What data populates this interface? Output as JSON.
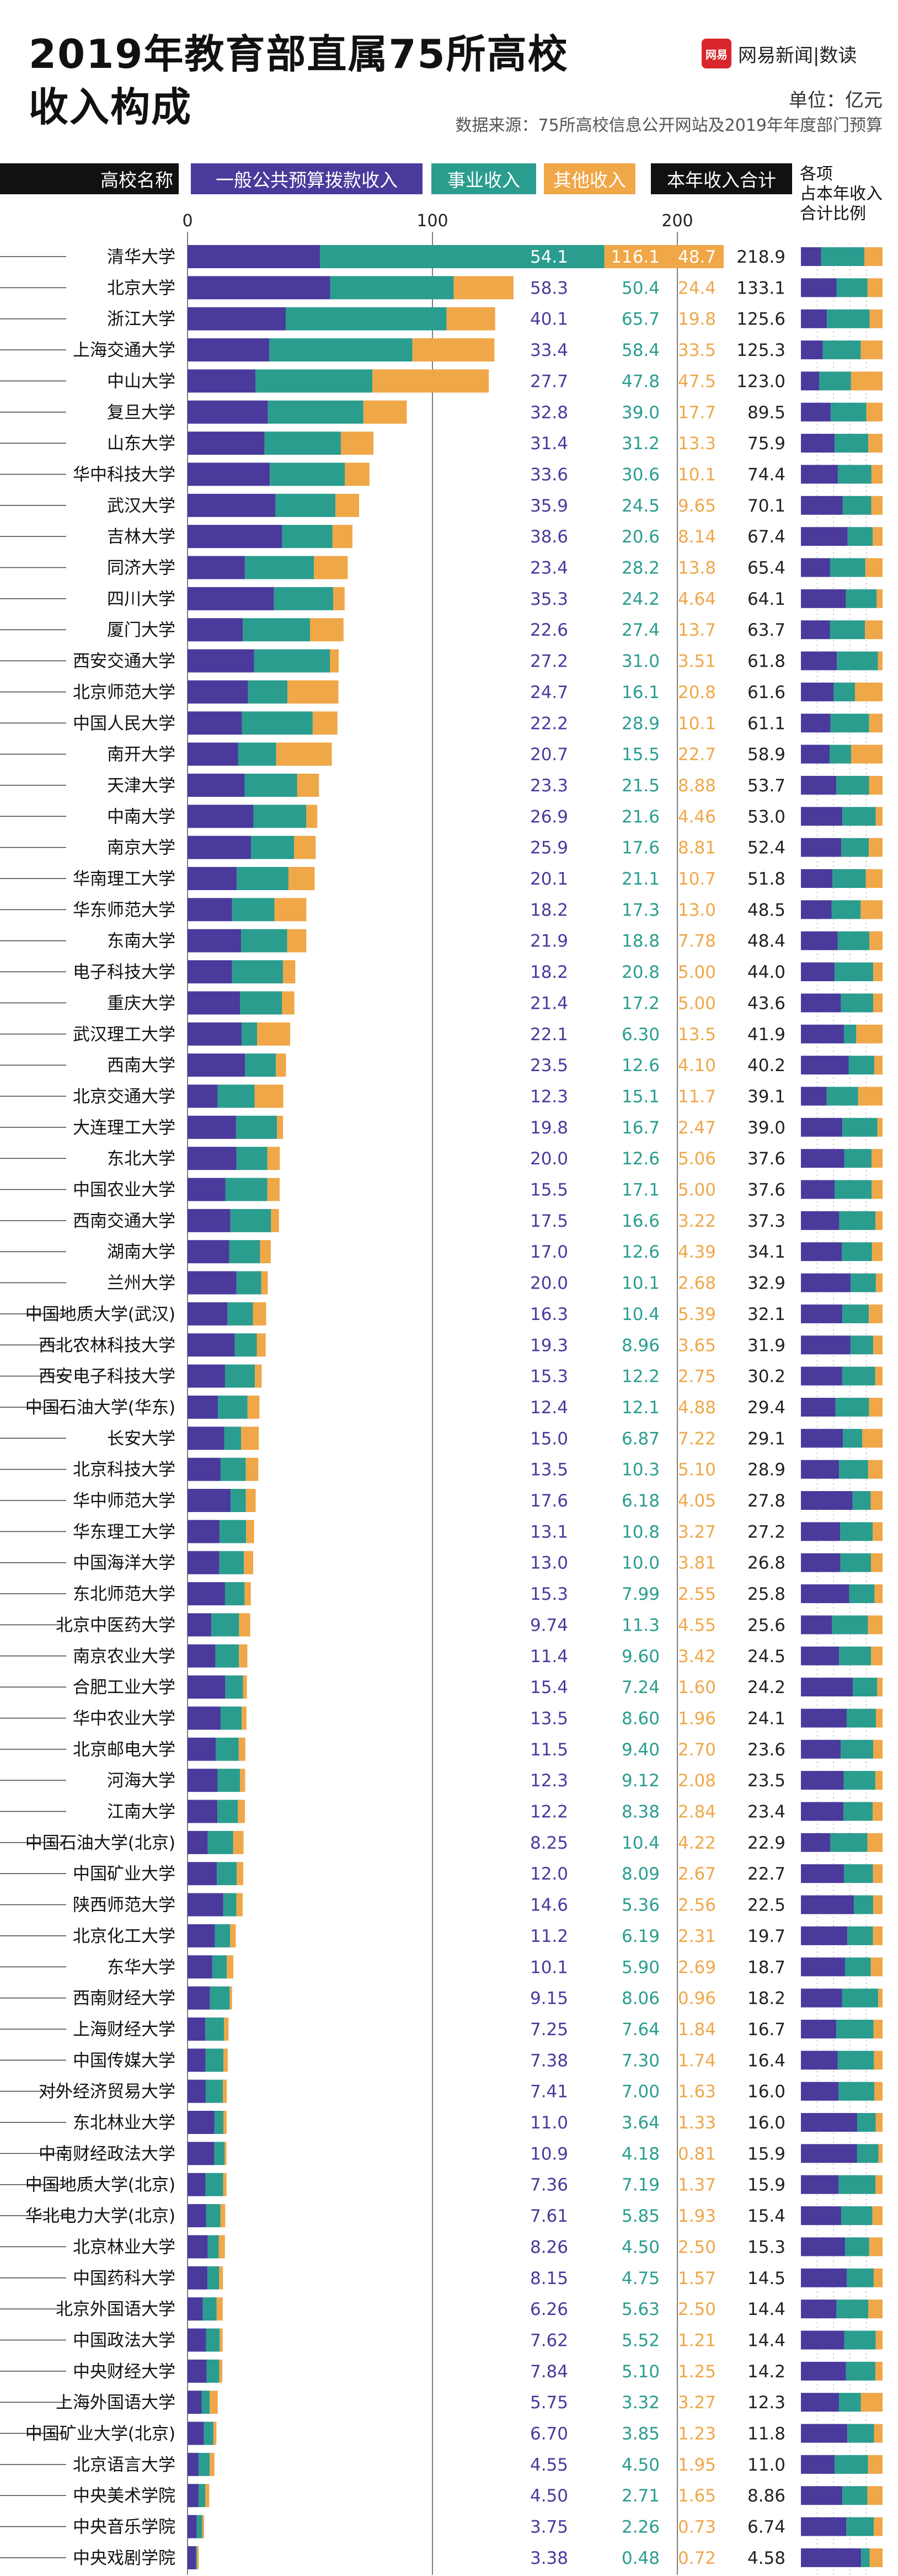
{
  "title_line1": "2019年教育部直属75所高校",
  "title_line2": "收入构成",
  "brand": {
    "badge": "网易",
    "text": "网易新闻|数读"
  },
  "unit": "单位：亿元",
  "source": "数据来源：75所高校信息公开网站及2019年年度部门预算",
  "headers": {
    "school": "高校名称",
    "public_budget": "一般公共预算拨款收入",
    "business": "事业收入",
    "other": "其他收入",
    "total": "本年收入合计",
    "ratio_line1": "各项",
    "ratio_line2": "占本年收入",
    "ratio_line3": "合计比例"
  },
  "colors": {
    "public_budget": "#4a3a9c",
    "business": "#2a9d8f",
    "other": "#f0a748"
  },
  "chart_data": {
    "type": "bar",
    "orientation": "horizontal",
    "stacked": true,
    "xlim": [
      0,
      220
    ],
    "x_ticks": [
      "0",
      "100",
      "200"
    ],
    "series": [
      {
        "name": "一般公共预算拨款收入",
        "color": "#4a3a9c"
      },
      {
        "name": "事业收入",
        "color": "#2a9d8f"
      },
      {
        "name": "其他收入",
        "color": "#f0a748"
      }
    ],
    "rows": [
      [
        "清华大学",
        "54.1",
        "116.1",
        "48.7",
        "218.9"
      ],
      [
        "北京大学",
        "58.3",
        "50.4",
        "24.4",
        "133.1"
      ],
      [
        "浙江大学",
        "40.1",
        "65.7",
        "19.8",
        "125.6"
      ],
      [
        "上海交通大学",
        "33.4",
        "58.4",
        "33.5",
        "125.3"
      ],
      [
        "中山大学",
        "27.7",
        "47.8",
        "47.5",
        "123.0"
      ],
      [
        "复旦大学",
        "32.8",
        "39.0",
        "17.7",
        "89.5"
      ],
      [
        "山东大学",
        "31.4",
        "31.2",
        "13.3",
        "75.9"
      ],
      [
        "华中科技大学",
        "33.6",
        "30.6",
        "10.1",
        "74.4"
      ],
      [
        "武汉大学",
        "35.9",
        "24.5",
        "9.65",
        "70.1"
      ],
      [
        "吉林大学",
        "38.6",
        "20.6",
        "8.14",
        "67.4"
      ],
      [
        "同济大学",
        "23.4",
        "28.2",
        "13.8",
        "65.4"
      ],
      [
        "四川大学",
        "35.3",
        "24.2",
        "4.64",
        "64.1"
      ],
      [
        "厦门大学",
        "22.6",
        "27.4",
        "13.7",
        "63.7"
      ],
      [
        "西安交通大学",
        "27.2",
        "31.0",
        "3.51",
        "61.8"
      ],
      [
        "北京师范大学",
        "24.7",
        "16.1",
        "20.8",
        "61.6"
      ],
      [
        "中国人民大学",
        "22.2",
        "28.9",
        "10.1",
        "61.1"
      ],
      [
        "南开大学",
        "20.7",
        "15.5",
        "22.7",
        "58.9"
      ],
      [
        "天津大学",
        "23.3",
        "21.5",
        "8.88",
        "53.7"
      ],
      [
        "中南大学",
        "26.9",
        "21.6",
        "4.46",
        "53.0"
      ],
      [
        "南京大学",
        "25.9",
        "17.6",
        "8.81",
        "52.4"
      ],
      [
        "华南理工大学",
        "20.1",
        "21.1",
        "10.7",
        "51.8"
      ],
      [
        "华东师范大学",
        "18.2",
        "17.3",
        "13.0",
        "48.5"
      ],
      [
        "东南大学",
        "21.9",
        "18.8",
        "7.78",
        "48.4"
      ],
      [
        "电子科技大学",
        "18.2",
        "20.8",
        "5.00",
        "44.0"
      ],
      [
        "重庆大学",
        "21.4",
        "17.2",
        "5.00",
        "43.6"
      ],
      [
        "武汉理工大学",
        "22.1",
        "6.30",
        "13.5",
        "41.9"
      ],
      [
        "西南大学",
        "23.5",
        "12.6",
        "4.10",
        "40.2"
      ],
      [
        "北京交通大学",
        "12.3",
        "15.1",
        "11.7",
        "39.1"
      ],
      [
        "大连理工大学",
        "19.8",
        "16.7",
        "2.47",
        "39.0"
      ],
      [
        "东北大学",
        "20.0",
        "12.6",
        "5.06",
        "37.6"
      ],
      [
        "中国农业大学",
        "15.5",
        "17.1",
        "5.00",
        "37.6"
      ],
      [
        "西南交通大学",
        "17.5",
        "16.6",
        "3.22",
        "37.3"
      ],
      [
        "湖南大学",
        "17.0",
        "12.6",
        "4.39",
        "34.1"
      ],
      [
        "兰州大学",
        "20.0",
        "10.1",
        "2.68",
        "32.9"
      ],
      [
        "中国地质大学(武汉)",
        "16.3",
        "10.4",
        "5.39",
        "32.1"
      ],
      [
        "西北农林科技大学",
        "19.3",
        "8.96",
        "3.65",
        "31.9"
      ],
      [
        "西安电子科技大学",
        "15.3",
        "12.2",
        "2.75",
        "30.2"
      ],
      [
        "中国石油大学(华东)",
        "12.4",
        "12.1",
        "4.88",
        "29.4"
      ],
      [
        "长安大学",
        "15.0",
        "6.87",
        "7.22",
        "29.1"
      ],
      [
        "北京科技大学",
        "13.5",
        "10.3",
        "5.10",
        "28.9"
      ],
      [
        "华中师范大学",
        "17.6",
        "6.18",
        "4.05",
        "27.8"
      ],
      [
        "华东理工大学",
        "13.1",
        "10.8",
        "3.27",
        "27.2"
      ],
      [
        "中国海洋大学",
        "13.0",
        "10.0",
        "3.81",
        "26.8"
      ],
      [
        "东北师范大学",
        "15.3",
        "7.99",
        "2.55",
        "25.8"
      ],
      [
        "北京中医药大学",
        "9.74",
        "11.3",
        "4.55",
        "25.6"
      ],
      [
        "南京农业大学",
        "11.4",
        "9.60",
        "3.42",
        "24.5"
      ],
      [
        "合肥工业大学",
        "15.4",
        "7.24",
        "1.60",
        "24.2"
      ],
      [
        "华中农业大学",
        "13.5",
        "8.60",
        "1.96",
        "24.1"
      ],
      [
        "北京邮电大学",
        "11.5",
        "9.40",
        "2.70",
        "23.6"
      ],
      [
        "河海大学",
        "12.3",
        "9.12",
        "2.08",
        "23.5"
      ],
      [
        "江南大学",
        "12.2",
        "8.38",
        "2.84",
        "23.4"
      ],
      [
        "中国石油大学(北京)",
        "8.25",
        "10.4",
        "4.22",
        "22.9"
      ],
      [
        "中国矿业大学",
        "12.0",
        "8.09",
        "2.67",
        "22.7"
      ],
      [
        "陕西师范大学",
        "14.6",
        "5.36",
        "2.56",
        "22.5"
      ],
      [
        "北京化工大学",
        "11.2",
        "6.19",
        "2.31",
        "19.7"
      ],
      [
        "东华大学",
        "10.1",
        "5.90",
        "2.69",
        "18.7"
      ],
      [
        "西南财经大学",
        "9.15",
        "8.06",
        "0.96",
        "18.2"
      ],
      [
        "上海财经大学",
        "7.25",
        "7.64",
        "1.84",
        "16.7"
      ],
      [
        "中国传媒大学",
        "7.38",
        "7.30",
        "1.74",
        "16.4"
      ],
      [
        "对外经济贸易大学",
        "7.41",
        "7.00",
        "1.63",
        "16.0"
      ],
      [
        "东北林业大学",
        "11.0",
        "3.64",
        "1.33",
        "16.0"
      ],
      [
        "中南财经政法大学",
        "10.9",
        "4.18",
        "0.81",
        "15.9"
      ],
      [
        "中国地质大学(北京)",
        "7.36",
        "7.19",
        "1.37",
        "15.9"
      ],
      [
        "华北电力大学(北京)",
        "7.61",
        "5.85",
        "1.93",
        "15.4"
      ],
      [
        "北京林业大学",
        "8.26",
        "4.50",
        "2.50",
        "15.3"
      ],
      [
        "中国药科大学",
        "8.15",
        "4.75",
        "1.57",
        "14.5"
      ],
      [
        "北京外国语大学",
        "6.26",
        "5.63",
        "2.50",
        "14.4"
      ],
      [
        "中国政法大学",
        "7.62",
        "5.52",
        "1.21",
        "14.4"
      ],
      [
        "中央财经大学",
        "7.84",
        "5.10",
        "1.25",
        "14.2"
      ],
      [
        "上海外国语大学",
        "5.75",
        "3.32",
        "3.27",
        "12.3"
      ],
      [
        "中国矿业大学(北京)",
        "6.70",
        "3.85",
        "1.23",
        "11.8"
      ],
      [
        "北京语言大学",
        "4.55",
        "4.50",
        "1.95",
        "11.0"
      ],
      [
        "中央美术学院",
        "4.50",
        "2.71",
        "1.65",
        "8.86"
      ],
      [
        "中央音乐学院",
        "3.75",
        "2.26",
        "0.73",
        "6.74"
      ],
      [
        "中央戏剧学院",
        "3.38",
        "0.48",
        "0.72",
        "4.58"
      ]
    ]
  }
}
